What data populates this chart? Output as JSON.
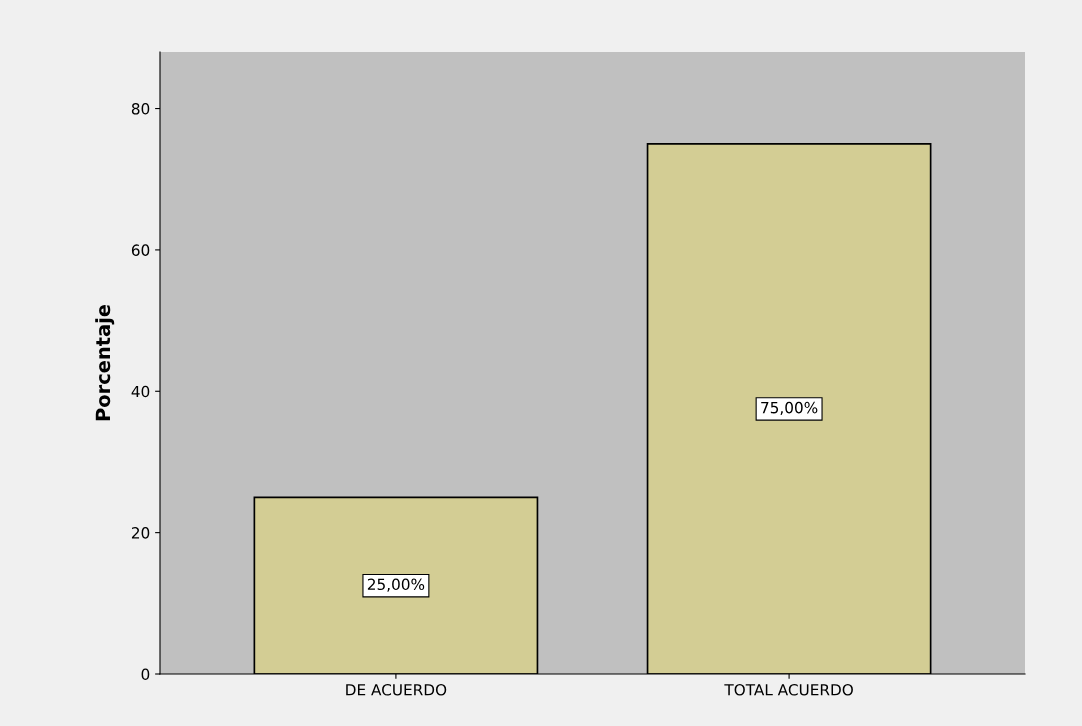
{
  "chart_data": {
    "type": "bar",
    "ylabel": "Porcentaje",
    "categories": [
      "DE ACUERDO",
      "TOTAL ACUERDO"
    ],
    "values": [
      25,
      75
    ],
    "value_labels": [
      "25,00%",
      "75,00%"
    ],
    "color": "#d3cd94",
    "ylim": [
      0,
      88
    ],
    "yticks": [
      0,
      20,
      40,
      60,
      80
    ],
    "grid": false,
    "legend": false
  }
}
